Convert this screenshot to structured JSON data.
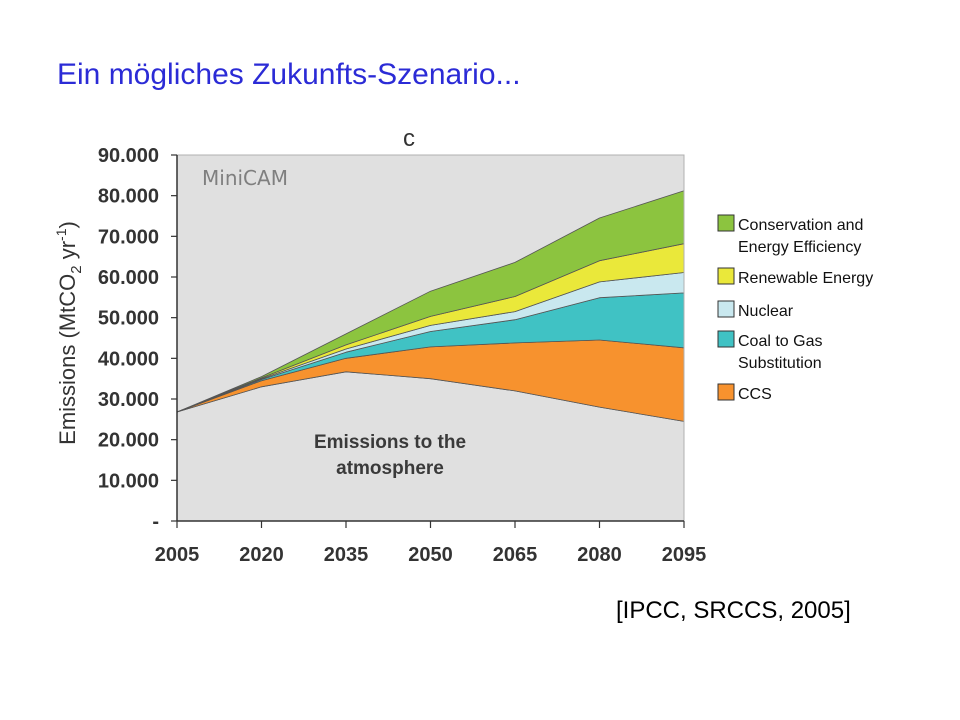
{
  "slide": {
    "title": "Ein mögliches Zukunfts-Szenario...",
    "citation": "[IPCC, SRCCS, 2005]"
  },
  "chart_data": {
    "type": "area",
    "stacked": true,
    "panel_letter": "c",
    "model_label": "MiniCAM",
    "ylabel": "Emissions (MtCO2 yr-1)",
    "ylabel_parts": {
      "prefix": "Emissions (MtCO",
      "sub": "2",
      "mid": " yr",
      "sup": "-1",
      "suffix": ")"
    },
    "ylim": [
      0,
      90000
    ],
    "y_ticks": [
      {
        "value": 0,
        "label": "-"
      },
      {
        "value": 10000,
        "label": "10.000"
      },
      {
        "value": 20000,
        "label": "20.000"
      },
      {
        "value": 30000,
        "label": "30.000"
      },
      {
        "value": 40000,
        "label": "40.000"
      },
      {
        "value": 50000,
        "label": "50.000"
      },
      {
        "value": 60000,
        "label": "60.000"
      },
      {
        "value": 70000,
        "label": "70.000"
      },
      {
        "value": 80000,
        "label": "80.000"
      },
      {
        "value": 90000,
        "label": "90.000"
      }
    ],
    "x": [
      2005,
      2020,
      2035,
      2050,
      2065,
      2080,
      2095
    ],
    "x_tick_labels": [
      "2005",
      "2020",
      "2035",
      "2050",
      "2065",
      "2080",
      "2095"
    ],
    "grid": false,
    "series": [
      {
        "key": "atmosphere",
        "color": "#e0e0e0",
        "values": [
          26800,
          33000,
          36700,
          35000,
          32000,
          28000,
          24500
        ]
      },
      {
        "key": "ccs",
        "color": "#f7922e",
        "values": [
          0,
          1500,
          3300,
          7800,
          11800,
          16500,
          18100
        ]
      },
      {
        "key": "coal_to_gas",
        "color": "#40c2c4",
        "values": [
          0,
          300,
          1500,
          3800,
          5700,
          10400,
          13500
        ]
      },
      {
        "key": "nuclear",
        "color": "#c9e8ef",
        "values": [
          0,
          200,
          800,
          1500,
          2000,
          3900,
          5000
        ]
      },
      {
        "key": "renewable",
        "color": "#eae83a",
        "values": [
          0,
          200,
          1000,
          2200,
          3700,
          5200,
          7100
        ]
      },
      {
        "key": "conservation",
        "color": "#8cc43f",
        "values": [
          0,
          300,
          2700,
          6200,
          8400,
          10500,
          13000
        ]
      }
    ],
    "annotation": [
      "Emissions to the",
      "atmosphere"
    ],
    "legend": {
      "position": "right",
      "items": [
        {
          "key": "conservation",
          "color": "#8cc43f",
          "lines": [
            "Conservation and",
            "Energy Efficiency"
          ]
        },
        {
          "key": "renewable",
          "color": "#eae83a",
          "lines": [
            "Renewable Energy"
          ]
        },
        {
          "key": "nuclear",
          "color": "#c9e8ef",
          "lines": [
            "Nuclear"
          ]
        },
        {
          "key": "coal_to_gas",
          "color": "#40c2c4",
          "lines": [
            "Coal to Gas",
            "Substitution"
          ]
        },
        {
          "key": "ccs",
          "color": "#f7922e",
          "lines": [
            "CCS"
          ]
        }
      ]
    }
  }
}
